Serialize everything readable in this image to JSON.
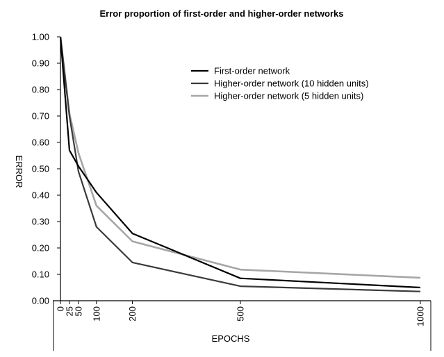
{
  "chart_data": {
    "type": "line",
    "title": "Error proportion of first-order and higher-order networks",
    "xlabel": "EPOCHS",
    "ylabel": "ERROR",
    "x": [
      0,
      25,
      50,
      100,
      200,
      500,
      1000
    ],
    "x_ticks": [
      "0",
      "25",
      "50",
      "100",
      "200",
      "500",
      "1000"
    ],
    "y_ticks": [
      "0.00",
      "0.10",
      "0.20",
      "0.30",
      "0.40",
      "0.50",
      "0.60",
      "0.70",
      "0.80",
      "0.90",
      "1.00"
    ],
    "ylim": [
      0,
      1
    ],
    "xlim": [
      0,
      1000
    ],
    "grid": false,
    "legend_position": "top-right",
    "series": [
      {
        "name": "First-order network",
        "color": "#000000",
        "values": [
          1.0,
          0.57,
          0.51,
          0.41,
          0.255,
          0.085,
          0.05
        ]
      },
      {
        "name": "Higher-order network (10 hidden units)",
        "color": "#3a3a3a",
        "values": [
          1.0,
          0.7,
          0.49,
          0.28,
          0.145,
          0.055,
          0.035
        ]
      },
      {
        "name": "Higher-order network (5 hidden units)",
        "color": "#a6a6a6",
        "values": [
          1.0,
          0.71,
          0.56,
          0.36,
          0.225,
          0.118,
          0.087
        ]
      }
    ]
  }
}
